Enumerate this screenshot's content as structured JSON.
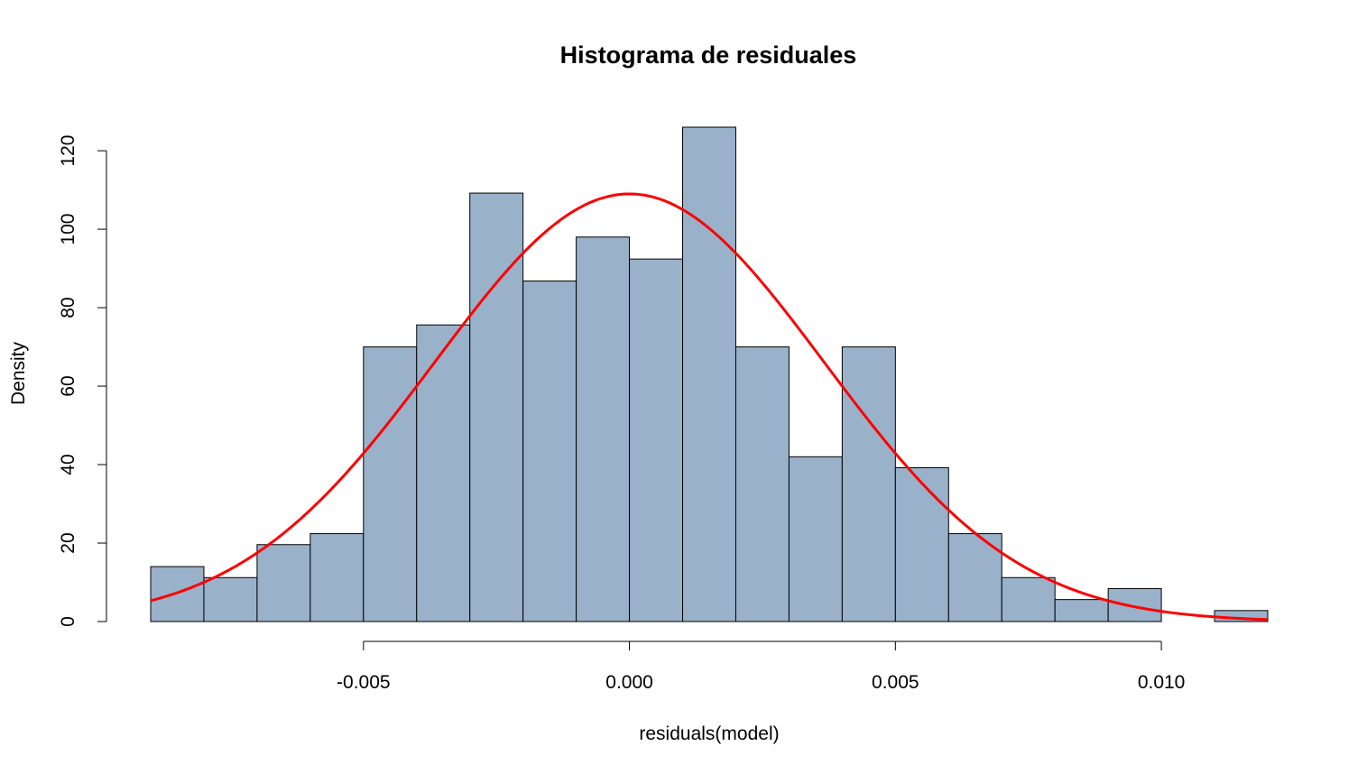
{
  "chart_data": {
    "type": "bar",
    "title": "Histograma de residuales",
    "xlabel": "residuals(model)",
    "ylabel": "Density",
    "xlim": [
      -0.009,
      0.012
    ],
    "ylim": [
      0,
      126
    ],
    "grid": false,
    "x_ticks": [
      -0.005,
      0.0,
      0.005,
      0.01
    ],
    "x_tick_labels": [
      "-0.005",
      "0.000",
      "0.005",
      "0.010"
    ],
    "y_ticks": [
      0,
      20,
      40,
      60,
      80,
      100,
      120
    ],
    "y_tick_labels": [
      "0",
      "20",
      "40",
      "60",
      "80",
      "100",
      "120"
    ],
    "bins": [
      {
        "x0": -0.009,
        "x1": -0.008,
        "density": 14.0
      },
      {
        "x0": -0.008,
        "x1": -0.007,
        "density": 11.2
      },
      {
        "x0": -0.007,
        "x1": -0.006,
        "density": 19.6
      },
      {
        "x0": -0.006,
        "x1": -0.005,
        "density": 22.4
      },
      {
        "x0": -0.005,
        "x1": -0.004,
        "density": 70.0
      },
      {
        "x0": -0.004,
        "x1": -0.003,
        "density": 75.6
      },
      {
        "x0": -0.003,
        "x1": -0.002,
        "density": 109.2
      },
      {
        "x0": -0.002,
        "x1": -0.001,
        "density": 86.8
      },
      {
        "x0": -0.001,
        "x1": 0.0,
        "density": 98.0
      },
      {
        "x0": 0.0,
        "x1": 0.001,
        "density": 92.4
      },
      {
        "x0": 0.001,
        "x1": 0.002,
        "density": 126.0
      },
      {
        "x0": 0.002,
        "x1": 0.003,
        "density": 70.0
      },
      {
        "x0": 0.003,
        "x1": 0.004,
        "density": 42.0
      },
      {
        "x0": 0.004,
        "x1": 0.005,
        "density": 70.0
      },
      {
        "x0": 0.005,
        "x1": 0.006,
        "density": 39.2
      },
      {
        "x0": 0.006,
        "x1": 0.007,
        "density": 22.4
      },
      {
        "x0": 0.007,
        "x1": 0.008,
        "density": 11.2
      },
      {
        "x0": 0.008,
        "x1": 0.009,
        "density": 5.6
      },
      {
        "x0": 0.009,
        "x1": 0.01,
        "density": 8.4
      },
      {
        "x0": 0.01,
        "x1": 0.011,
        "density": 0.0
      },
      {
        "x0": 0.011,
        "x1": 0.012,
        "density": 2.8
      }
    ],
    "density_curve": {
      "type": "line",
      "color": "#ff0000",
      "mean": 0.0,
      "sd": 0.00366
    },
    "bar_color": "#9ab1ca",
    "bar_border_color": "#000000"
  }
}
